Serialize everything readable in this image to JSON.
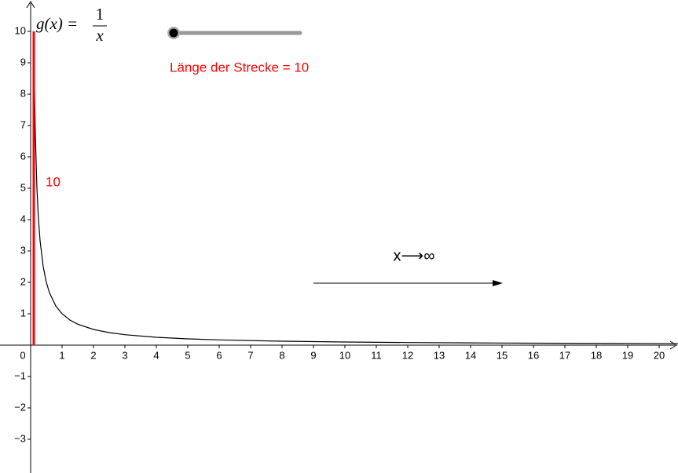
{
  "chart_data": {
    "type": "line",
    "function_label": {
      "lhs": "g(x) =",
      "numerator": "1",
      "denominator": "x"
    },
    "x": [
      0.1,
      0.12,
      0.15,
      0.2,
      0.25,
      0.3,
      0.4,
      0.5,
      0.6,
      0.8,
      1,
      1.25,
      1.5,
      2,
      2.5,
      3,
      4,
      5,
      6,
      8,
      10,
      12,
      14,
      16,
      18,
      20.6
    ],
    "series": [
      {
        "color": "#000000",
        "values": [
          10,
          8.333,
          6.667,
          5,
          4,
          3.333,
          2.5,
          2,
          1.667,
          1.25,
          1,
          0.8,
          0.667,
          0.5,
          0.4,
          0.333,
          0.25,
          0.2,
          0.167,
          0.125,
          0.1,
          0.083,
          0.071,
          0.0625,
          0.056,
          0.049
        ]
      }
    ],
    "segment": {
      "x": 0.1,
      "y": [
        0,
        10
      ],
      "color": "#ff0000",
      "label": "10",
      "caption": "Länge der Strecke = 10"
    },
    "arrow_label": "x⟶∞",
    "xlim": [
      -0.975,
      20.6
    ],
    "ylim": [
      -4.075,
      11
    ],
    "xticks": [
      0,
      1,
      2,
      3,
      4,
      5,
      6,
      7,
      8,
      9,
      10,
      11,
      12,
      13,
      14,
      15,
      16,
      17,
      18,
      19,
      20
    ],
    "yticks": [
      {
        "value": -3,
        "label": "−3"
      },
      {
        "value": -2,
        "label": "−2"
      },
      {
        "value": -1,
        "label": "−1"
      },
      1,
      2,
      3,
      4,
      5,
      6,
      7,
      8,
      9,
      10
    ]
  }
}
